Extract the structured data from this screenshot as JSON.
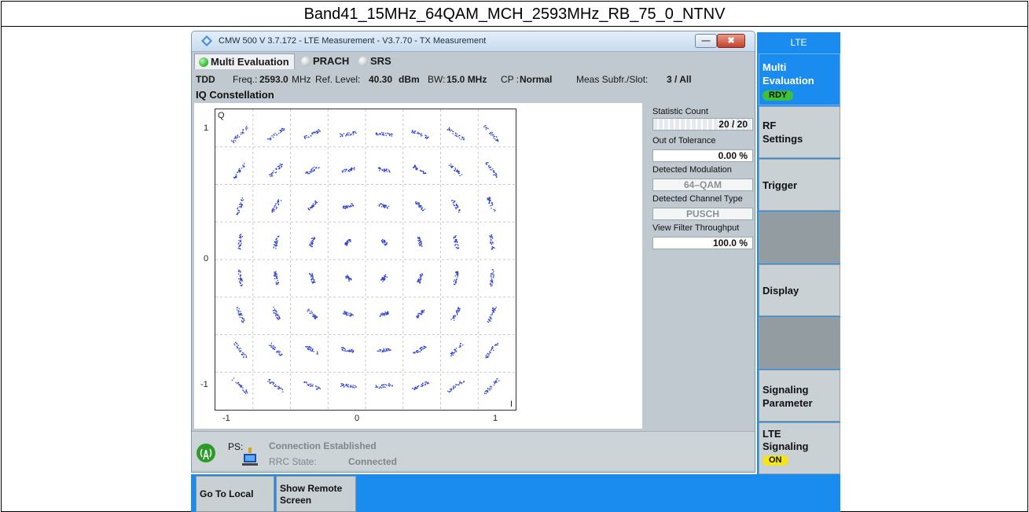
{
  "caption": "Band41_15MHz_64QAM_MCH_2593MHz_RB_75_0_NTNV",
  "window": {
    "title": "CMW 500 V 3.7.172 - LTE Measurement  - V3.7.70 - TX Measurement",
    "min_glyph": "—",
    "close_glyph": "✖"
  },
  "tabs": [
    {
      "label": "Multi Evaluation",
      "led": "#3fc23a"
    },
    {
      "label": "PRACH",
      "led": "#c9ced1"
    },
    {
      "label": "SRS",
      "led": "#c9ced1"
    }
  ],
  "info": {
    "duplex": "TDD",
    "freq_label": "Freq.:",
    "freq_value": "2593.0",
    "freq_unit": "MHz",
    "ref_label": "Ref. Level:",
    "ref_value": "40.30",
    "ref_unit": "dBm",
    "bw_label": "BW:",
    "bw_value": "15.0 MHz",
    "cp_label": "CP :",
    "cp_value": "Normal",
    "meas_label": "Meas Subfr./Slot:",
    "meas_value": "3  / All"
  },
  "iq_title": "IQ Constellation",
  "plot": {
    "q_label": "Q",
    "i_label": "I",
    "y_ticks": [
      "1",
      "0",
      "-1"
    ],
    "x_ticks": [
      "-1",
      "0",
      "1"
    ],
    "point_color": "#2b3fd6"
  },
  "stats": {
    "count_label": "Statistic Count",
    "count_value": "20 / 20",
    "tol_label": "Out of Tolerance",
    "tol_value": "0.00  %",
    "mod_label": "Detected Modulation",
    "mod_value": "64–QAM",
    "chan_label": "Detected Channel Type",
    "chan_value": "PUSCH",
    "vft_label": "View Filter Throughput",
    "vft_value": "100.0  %"
  },
  "status": {
    "ps_label": "PS:",
    "connection": "Connection Established",
    "rrc_label": "RRC State:",
    "rrc_value": "Connected"
  },
  "bottom": {
    "go_local": "Go To Local",
    "show_remote_1": "Show Remote",
    "show_remote_2": "Screen"
  },
  "side": {
    "header": "LTE",
    "multi_1": "Multi",
    "multi_2": "Evaluation",
    "multi_badge": "RDY",
    "rf_1": "RF",
    "rf_2": "Settings",
    "trigger": "Trigger",
    "display": "Display",
    "sig_1": "Signaling",
    "sig_2": "Parameter",
    "lte_1": "LTE",
    "lte_2": "Signaling",
    "lte_badge": "ON"
  },
  "colors": {
    "accent": "#1a8cf0",
    "rdy": "#3ec13a",
    "on": "#f4e41c"
  }
}
